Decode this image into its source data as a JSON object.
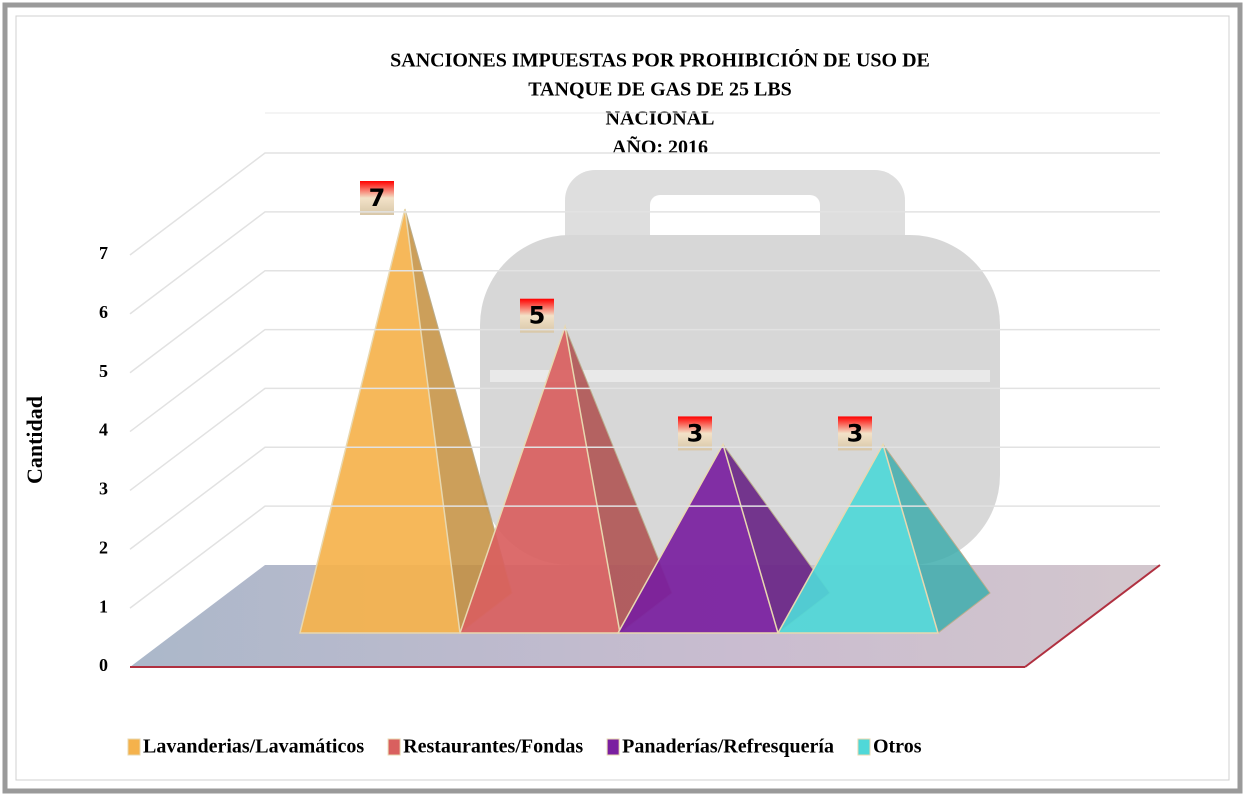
{
  "chart_data": {
    "type": "pyramid3d",
    "title": [
      "SANCIONES IMPUESTAS POR PROHIBICIÓN DE USO DE",
      "TANQUE DE GAS DE 25 LBS",
      "NACIONAL",
      "AÑO: 2016"
    ],
    "y_label": "Cantidad",
    "categories": [
      "Lavanderias/Lavamáticos",
      "Restaurantes/Fondas",
      "Panaderías/Refresquería",
      "Otros"
    ],
    "values": [
      7,
      5,
      3,
      3
    ],
    "colors": [
      "#f5b24c",
      "#d9605f",
      "#7a1fa0",
      "#4fd8d8"
    ],
    "ylim": [
      0,
      7
    ],
    "yticks": [
      0,
      1,
      2,
      3,
      4,
      5,
      6,
      7
    ],
    "grid": true,
    "legend": "bottom"
  }
}
